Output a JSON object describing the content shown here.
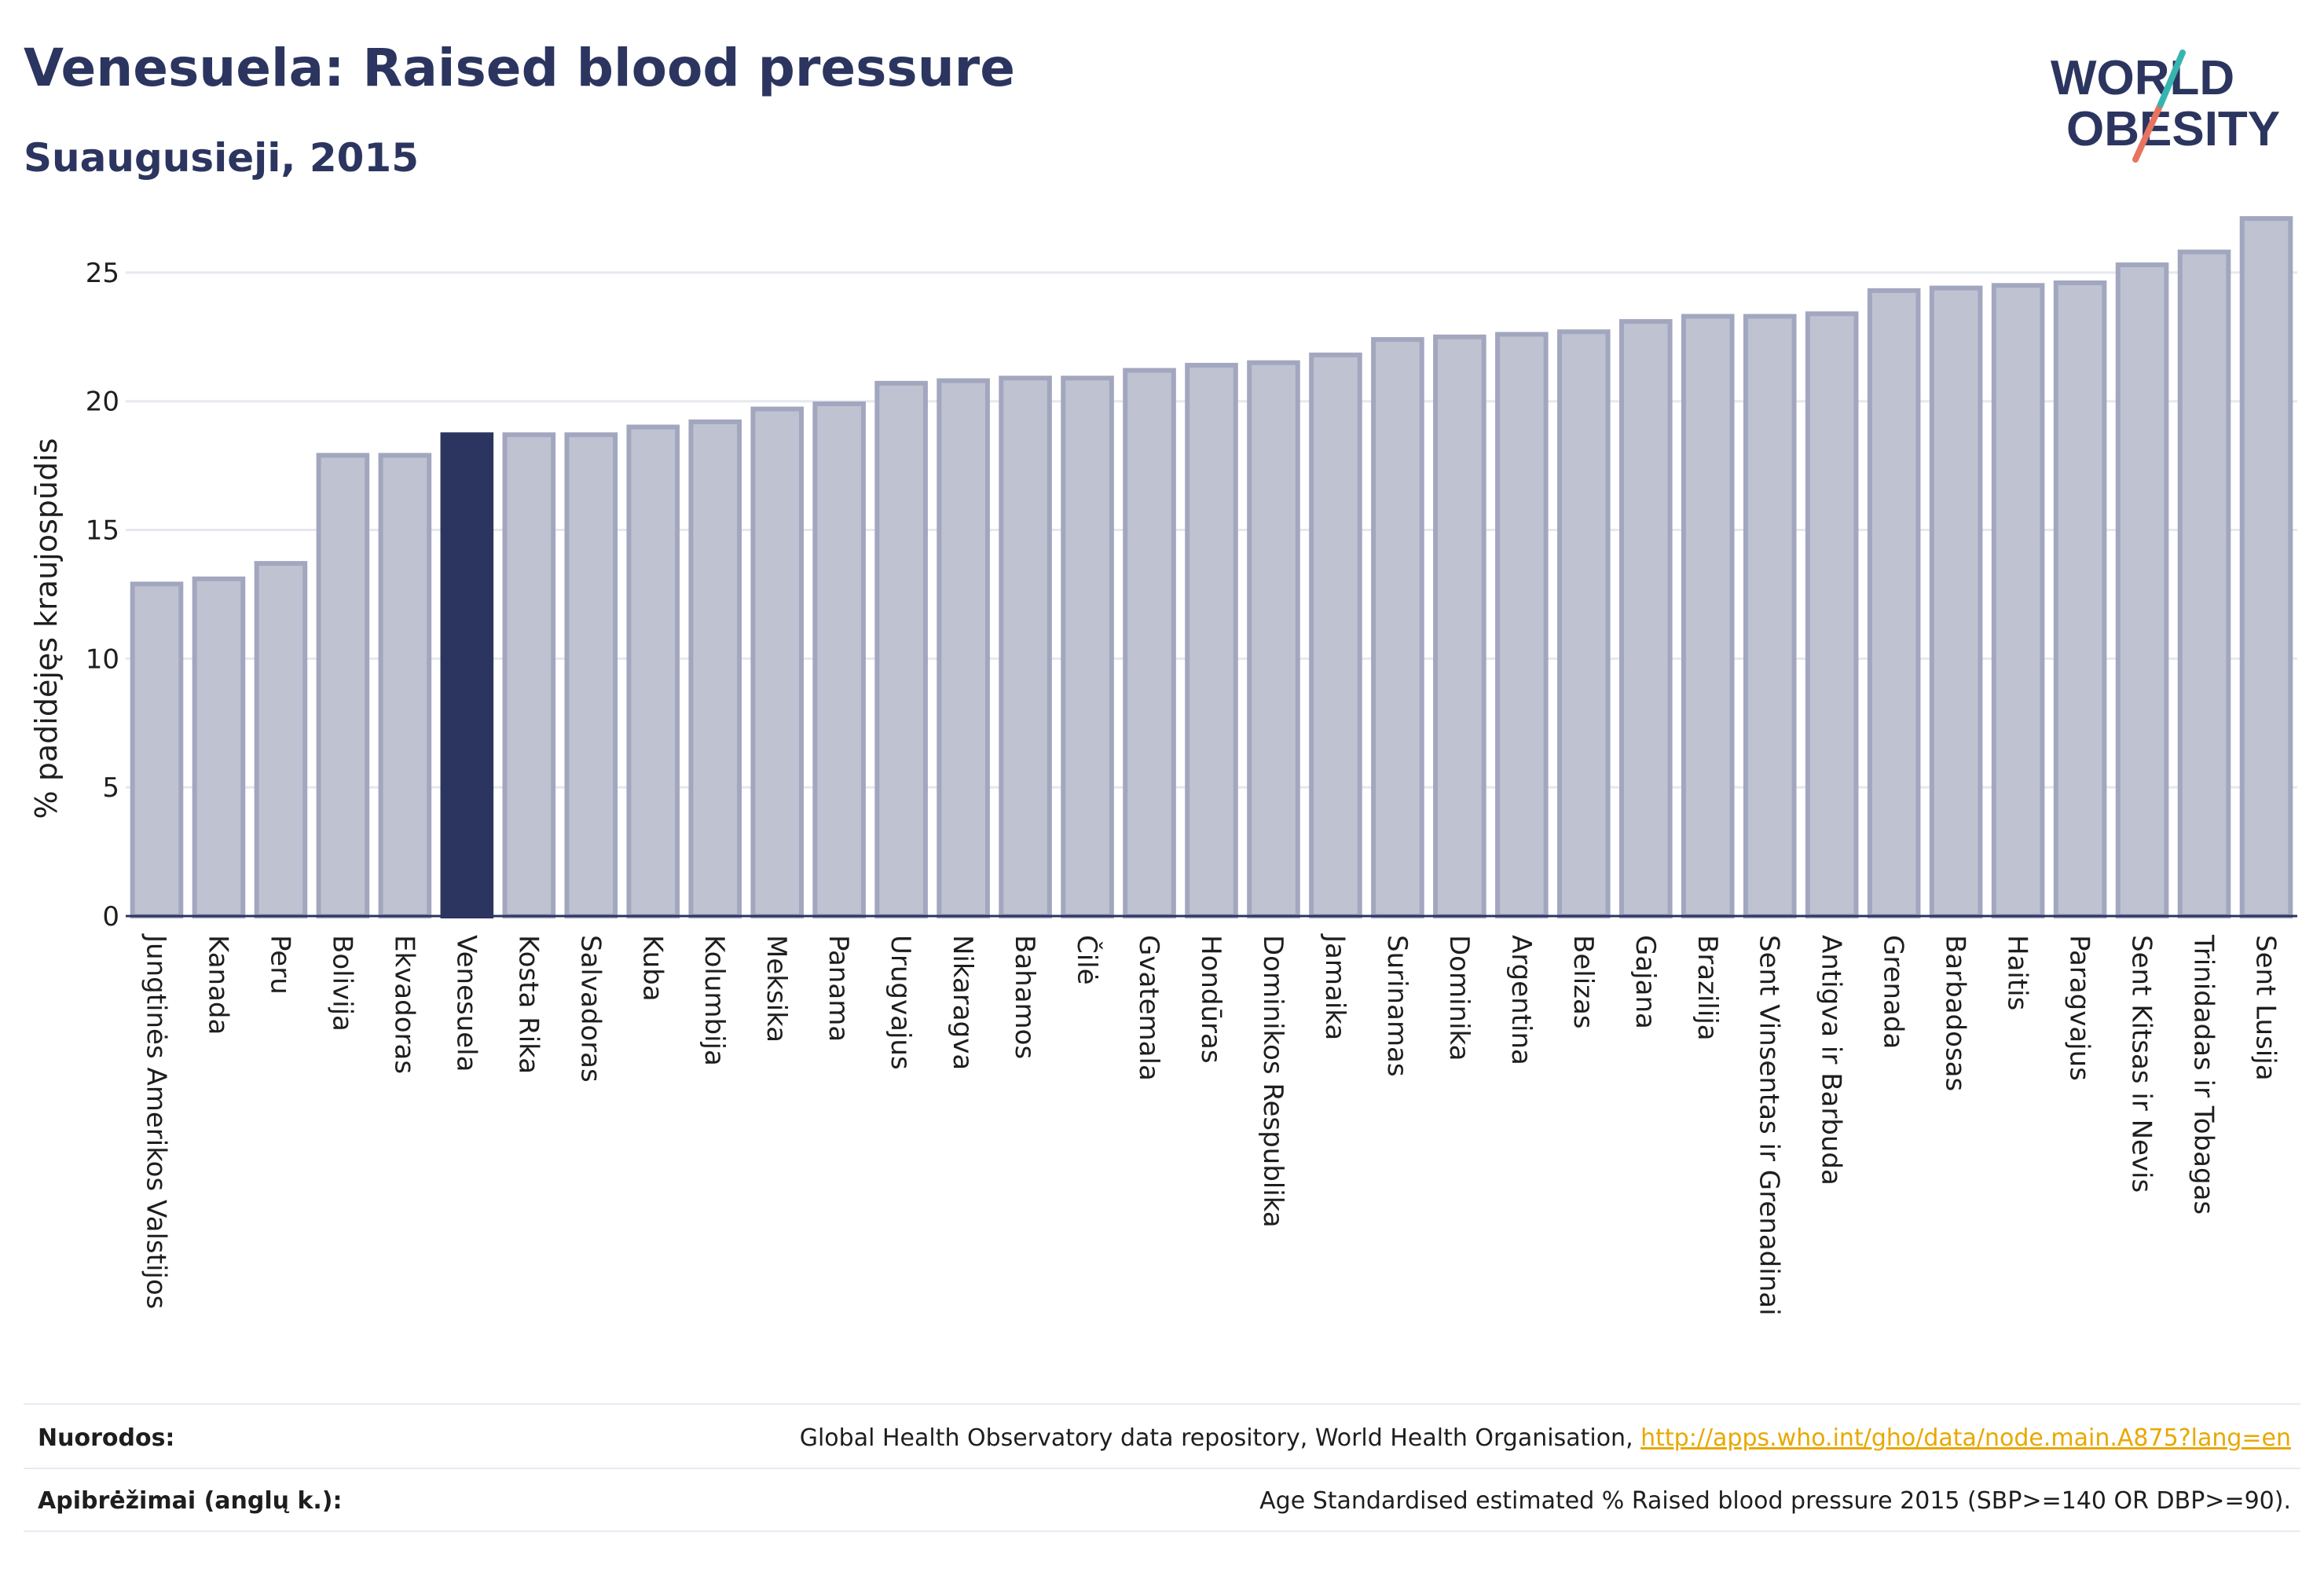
{
  "header": {
    "title": "Venesuela: Raised blood pressure",
    "subtitle": "Suaugusieji, 2015",
    "logo_line1": "WORLD",
    "logo_line2": "OBESITY"
  },
  "chart_data": {
    "type": "bar",
    "title": "Venesuela: Raised blood pressure",
    "subtitle": "Suaugusieji, 2015",
    "ylabel": "% padidėjęs kraujospūdis",
    "xlabel": "",
    "ylim": [
      0,
      27.5
    ],
    "yticks": [
      0,
      5,
      10,
      15,
      20,
      25
    ],
    "grid": true,
    "highlight": "Venesuela",
    "categories": [
      "Jungtinės Amerikos Valstijos",
      "Kanada",
      "Peru",
      "Bolivija",
      "Ekvadoras",
      "Venesuela",
      "Kosta Rika",
      "Salvadoras",
      "Kuba",
      "Kolumbija",
      "Meksika",
      "Panama",
      "Urugvajus",
      "Nikaragva",
      "Bahamos",
      "Čilė",
      "Gvatemala",
      "Hondūras",
      "Dominikos Respublika",
      "Jamaika",
      "Surinamas",
      "Dominika",
      "Argentina",
      "Belizas",
      "Gajana",
      "Brazilija",
      "Sent Vinsentas ir Grenadinai",
      "Antigva ir Barbuda",
      "Grenada",
      "Barbadosas",
      "Haitis",
      "Paragvajus",
      "Sent Kitsas ir Nevis",
      "Trinidadas ir Tobagas",
      "Sent Lusija"
    ],
    "values": [
      12.9,
      13.1,
      13.7,
      17.9,
      17.9,
      18.7,
      18.7,
      18.7,
      19.0,
      19.2,
      19.7,
      19.9,
      20.7,
      20.8,
      20.9,
      20.9,
      21.2,
      21.4,
      21.5,
      21.8,
      22.4,
      22.5,
      22.6,
      22.7,
      23.1,
      23.3,
      23.3,
      23.4,
      24.3,
      24.4,
      24.5,
      24.6,
      25.3,
      25.8,
      27.1
    ],
    "colors": {
      "bar": "#bfc2d1",
      "bar_stroke": "#a2a7bf",
      "highlight": "#2b355f",
      "grid": "#e6e8ef",
      "axis": "#2b355f"
    }
  },
  "footer": {
    "refs_label": "Nuorodos:",
    "refs_text": "Global Health Observatory data repository, World Health Organisation, ",
    "refs_link": "http://apps.who.int/gho/data/node.main.A875?lang=en",
    "defs_label": "Apibrėžimai (anglų k.):",
    "defs_text": "Age Standardised estimated % Raised blood pressure 2015 (SBP>=140 OR DBP>=90)."
  }
}
